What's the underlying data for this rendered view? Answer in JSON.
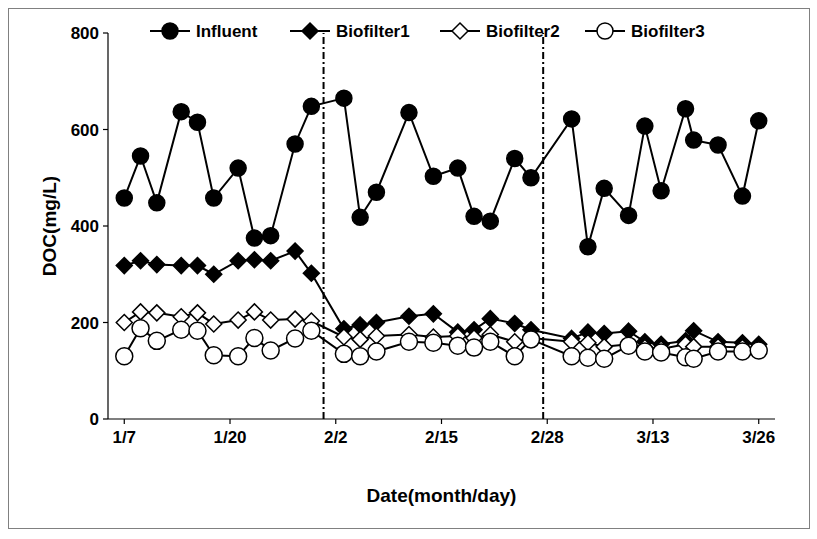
{
  "chart_data": {
    "type": "line",
    "x_label": "Date(month/day)",
    "y_label": "DOC(mg/L)",
    "x": [
      7,
      9,
      11,
      14,
      16,
      18,
      21,
      23,
      25,
      28,
      30,
      34,
      36,
      38,
      42,
      45,
      48,
      50,
      52,
      55,
      57,
      62,
      64,
      66,
      69,
      71,
      73,
      76,
      77,
      80,
      83,
      85
    ],
    "xlim": [
      5,
      87
    ],
    "xticks": [
      {
        "value": 7,
        "label": "1/7"
      },
      {
        "value": 20,
        "label": "1/20"
      },
      {
        "value": 33,
        "label": "2/2"
      },
      {
        "value": 46,
        "label": "2/15"
      },
      {
        "value": 59,
        "label": "2/28"
      },
      {
        "value": 72,
        "label": "3/13"
      },
      {
        "value": 85,
        "label": "3/26"
      }
    ],
    "ylim": [
      0,
      800
    ],
    "yticks": [
      0,
      200,
      400,
      600,
      800
    ],
    "grid": false,
    "legend": "top",
    "vlines": [
      31.5,
      58.5
    ],
    "series": [
      {
        "name": "Influent",
        "color": "#000000",
        "marker": "circle",
        "values": [
          458,
          545,
          448,
          637,
          615,
          458,
          520,
          375,
          380,
          570,
          648,
          665,
          418,
          470,
          635,
          503,
          520,
          420,
          410,
          540,
          500,
          622,
          357,
          478,
          422,
          607,
          473,
          643,
          578,
          568,
          462,
          618
        ]
      },
      {
        "name": "Biofilter1",
        "color": "#000000",
        "marker": "diamond",
        "values": [
          318,
          328,
          320,
          318,
          318,
          300,
          328,
          330,
          328,
          348,
          302,
          187,
          195,
          200,
          213,
          218,
          180,
          185,
          208,
          198,
          185,
          167,
          180,
          177,
          182,
          160,
          155,
          162,
          183,
          160,
          158,
          155
        ]
      },
      {
        "name": "Biofilter2",
        "color": "#000000",
        "marker": "open-diamond",
        "values": [
          200,
          222,
          220,
          212,
          220,
          197,
          205,
          222,
          205,
          207,
          203,
          170,
          165,
          172,
          175,
          170,
          172,
          168,
          175,
          160,
          168,
          160,
          158,
          150,
          155,
          148,
          145,
          155,
          150,
          150,
          148,
          145
        ]
      },
      {
        "name": "Biofilter3",
        "color": "#000000",
        "marker": "open-circle",
        "values": [
          130,
          188,
          162,
          185,
          183,
          132,
          130,
          168,
          142,
          167,
          183,
          135,
          130,
          140,
          160,
          158,
          152,
          148,
          160,
          130,
          165,
          130,
          127,
          125,
          152,
          140,
          138,
          128,
          125,
          140,
          140,
          142
        ]
      }
    ]
  }
}
